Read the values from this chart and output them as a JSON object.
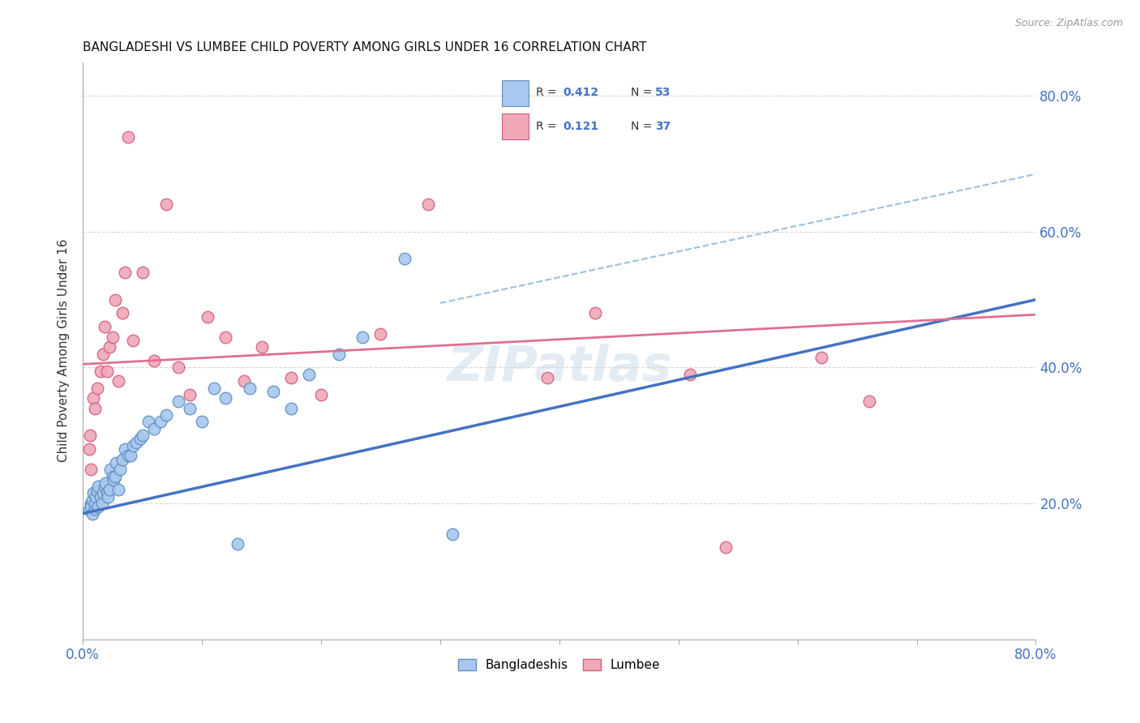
{
  "title": "BANGLADESHI VS LUMBEE CHILD POVERTY AMONG GIRLS UNDER 16 CORRELATION CHART",
  "source": "Source: ZipAtlas.com",
  "ylabel": "Child Poverty Among Girls Under 16",
  "xlim": [
    0.0,
    0.8
  ],
  "ylim": [
    0.0,
    0.85
  ],
  "xtick_labels": [
    "0.0%",
    "",
    "",
    "",
    "",
    "",
    "",
    "",
    "80.0%"
  ],
  "xtick_values": [
    0.0,
    0.1,
    0.2,
    0.3,
    0.4,
    0.5,
    0.6,
    0.7,
    0.8
  ],
  "ytick_values": [
    0.2,
    0.4,
    0.6,
    0.8
  ],
  "right_ytick_labels": [
    "20.0%",
    "40.0%",
    "60.0%",
    "80.0%"
  ],
  "bangladeshi_color": "#a8c8f0",
  "lumbee_color": "#f0a8b8",
  "bangladeshi_edge": "#6090c0",
  "lumbee_edge": "#d06080",
  "bangladeshi_line_color": "#4472c4",
  "lumbee_line_color": "#e07090",
  "dashed_line_color": "#90b8d8",
  "legend_label1": "Bangladeshis",
  "legend_label2": "Lumbee",
  "watermark": "ZIPatlas",
  "bang_line_x0": 0.0,
  "bang_line_y0": 0.185,
  "bang_line_x1": 0.8,
  "bang_line_y1": 0.5,
  "lumb_line_x0": 0.0,
  "lumb_line_y0": 0.405,
  "lumb_line_x1": 0.8,
  "lumb_line_y1": 0.478,
  "dash_line_x0": 0.3,
  "dash_line_y0": 0.495,
  "dash_line_x1": 0.8,
  "dash_line_y1": 0.685,
  "bangladeshi_x": [
    0.005,
    0.007,
    0.007,
    0.008,
    0.008,
    0.009,
    0.01,
    0.01,
    0.011,
    0.012,
    0.013,
    0.013,
    0.015,
    0.016,
    0.017,
    0.018,
    0.019,
    0.02,
    0.021,
    0.022,
    0.023,
    0.025,
    0.026,
    0.027,
    0.028,
    0.03,
    0.031,
    0.033,
    0.035,
    0.038,
    0.04,
    0.042,
    0.045,
    0.048,
    0.05,
    0.055,
    0.06,
    0.065,
    0.07,
    0.08,
    0.09,
    0.1,
    0.11,
    0.12,
    0.13,
    0.14,
    0.16,
    0.175,
    0.19,
    0.215,
    0.235,
    0.27,
    0.31
  ],
  "bangladeshi_y": [
    0.19,
    0.2,
    0.195,
    0.185,
    0.205,
    0.215,
    0.192,
    0.2,
    0.21,
    0.218,
    0.195,
    0.225,
    0.21,
    0.2,
    0.215,
    0.225,
    0.23,
    0.215,
    0.21,
    0.22,
    0.25,
    0.24,
    0.235,
    0.24,
    0.26,
    0.22,
    0.25,
    0.265,
    0.28,
    0.27,
    0.27,
    0.285,
    0.29,
    0.295,
    0.3,
    0.32,
    0.31,
    0.32,
    0.33,
    0.35,
    0.34,
    0.32,
    0.37,
    0.355,
    0.14,
    0.37,
    0.365,
    0.34,
    0.39,
    0.42,
    0.445,
    0.56,
    0.155
  ],
  "lumbee_x": [
    0.005,
    0.006,
    0.007,
    0.009,
    0.01,
    0.012,
    0.015,
    0.017,
    0.018,
    0.02,
    0.022,
    0.025,
    0.027,
    0.03,
    0.033,
    0.035,
    0.038,
    0.042,
    0.05,
    0.06,
    0.07,
    0.08,
    0.09,
    0.105,
    0.12,
    0.135,
    0.15,
    0.175,
    0.2,
    0.25,
    0.29,
    0.39,
    0.43,
    0.51,
    0.54,
    0.62,
    0.66
  ],
  "lumbee_y": [
    0.28,
    0.3,
    0.25,
    0.355,
    0.34,
    0.37,
    0.395,
    0.42,
    0.46,
    0.395,
    0.43,
    0.445,
    0.5,
    0.38,
    0.48,
    0.54,
    0.74,
    0.44,
    0.54,
    0.41,
    0.64,
    0.4,
    0.36,
    0.475,
    0.445,
    0.38,
    0.43,
    0.385,
    0.36,
    0.45,
    0.64,
    0.385,
    0.48,
    0.39,
    0.135,
    0.415,
    0.35
  ]
}
